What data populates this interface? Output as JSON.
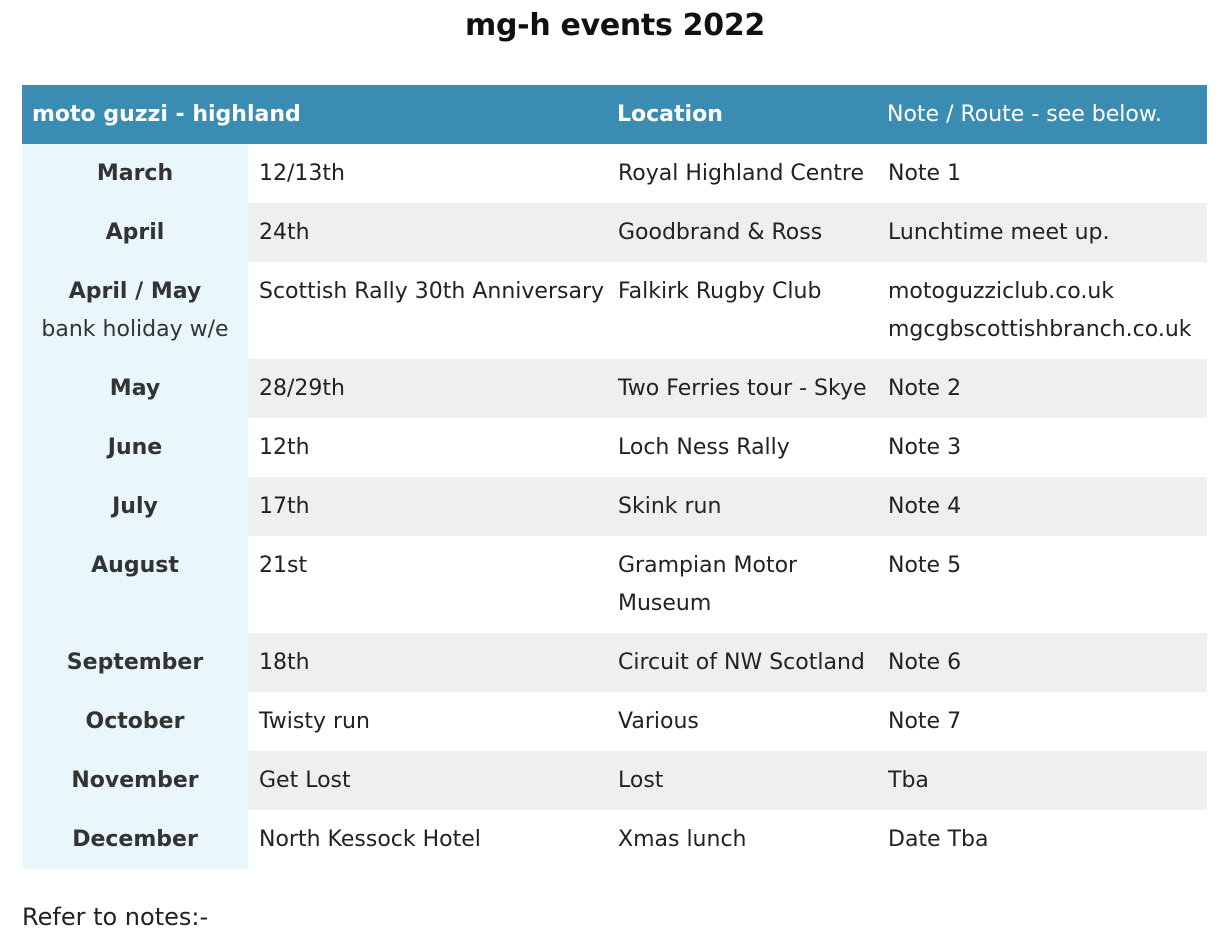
{
  "title": "mg-h events 2022",
  "table": {
    "headers": [
      "moto guzzi - highland",
      "",
      "Location",
      "Note / Route - see below."
    ],
    "rows": [
      {
        "month": "March",
        "month_sub": "",
        "event": "12/13th",
        "location": "Royal Highland Centre",
        "note": "Note 1",
        "note2": ""
      },
      {
        "month": "April",
        "month_sub": "",
        "event": "24th",
        "location": "Goodbrand & Ross",
        "note": "Lunchtime meet up.",
        "note2": ""
      },
      {
        "month": "April / May",
        "month_sub": "bank holiday w/e",
        "event": "Scottish Rally 30th Anniversary",
        "location": "Falkirk Rugby Club",
        "note": "motoguzziclub.co.uk",
        "note2": "mgcgbscottishbranch.co.uk"
      },
      {
        "month": "May",
        "month_sub": "",
        "event": "28/29th",
        "location": "Two Ferries tour - Skye",
        "note": "Note 2",
        "note2": ""
      },
      {
        "month": "June",
        "month_sub": "",
        "event": "12th",
        "location": "Loch Ness Rally",
        "note": "Note 3",
        "note2": ""
      },
      {
        "month": "July",
        "month_sub": "",
        "event": "17th",
        "location": "Skink run",
        "note": "Note 4",
        "note2": ""
      },
      {
        "month": "August",
        "month_sub": "",
        "event": "21st",
        "location": "Grampian Motor",
        "location2": "Museum",
        "note": "Note 5",
        "note2": ""
      },
      {
        "month": "September",
        "month_sub": "",
        "event": "18th",
        "location": "Circuit of NW Scotland",
        "note": "Note 6",
        "note2": ""
      },
      {
        "month": "October",
        "month_sub": "",
        "event": "Twisty run",
        "location": "Various",
        "note": "Note 7",
        "note2": ""
      },
      {
        "month": "November",
        "month_sub": "",
        "event": "Get Lost",
        "location": "Lost",
        "note": "Tba",
        "note2": ""
      },
      {
        "month": "December",
        "month_sub": "",
        "event": "North Kessock Hotel",
        "location": "Xmas lunch",
        "note": "Date Tba",
        "note2": ""
      }
    ]
  },
  "footer": "Refer to notes:-",
  "colors": {
    "header_bg": "#3b8cb3",
    "month_col_bg": "#e9f6fb",
    "stripe_bg": "#efefef"
  }
}
